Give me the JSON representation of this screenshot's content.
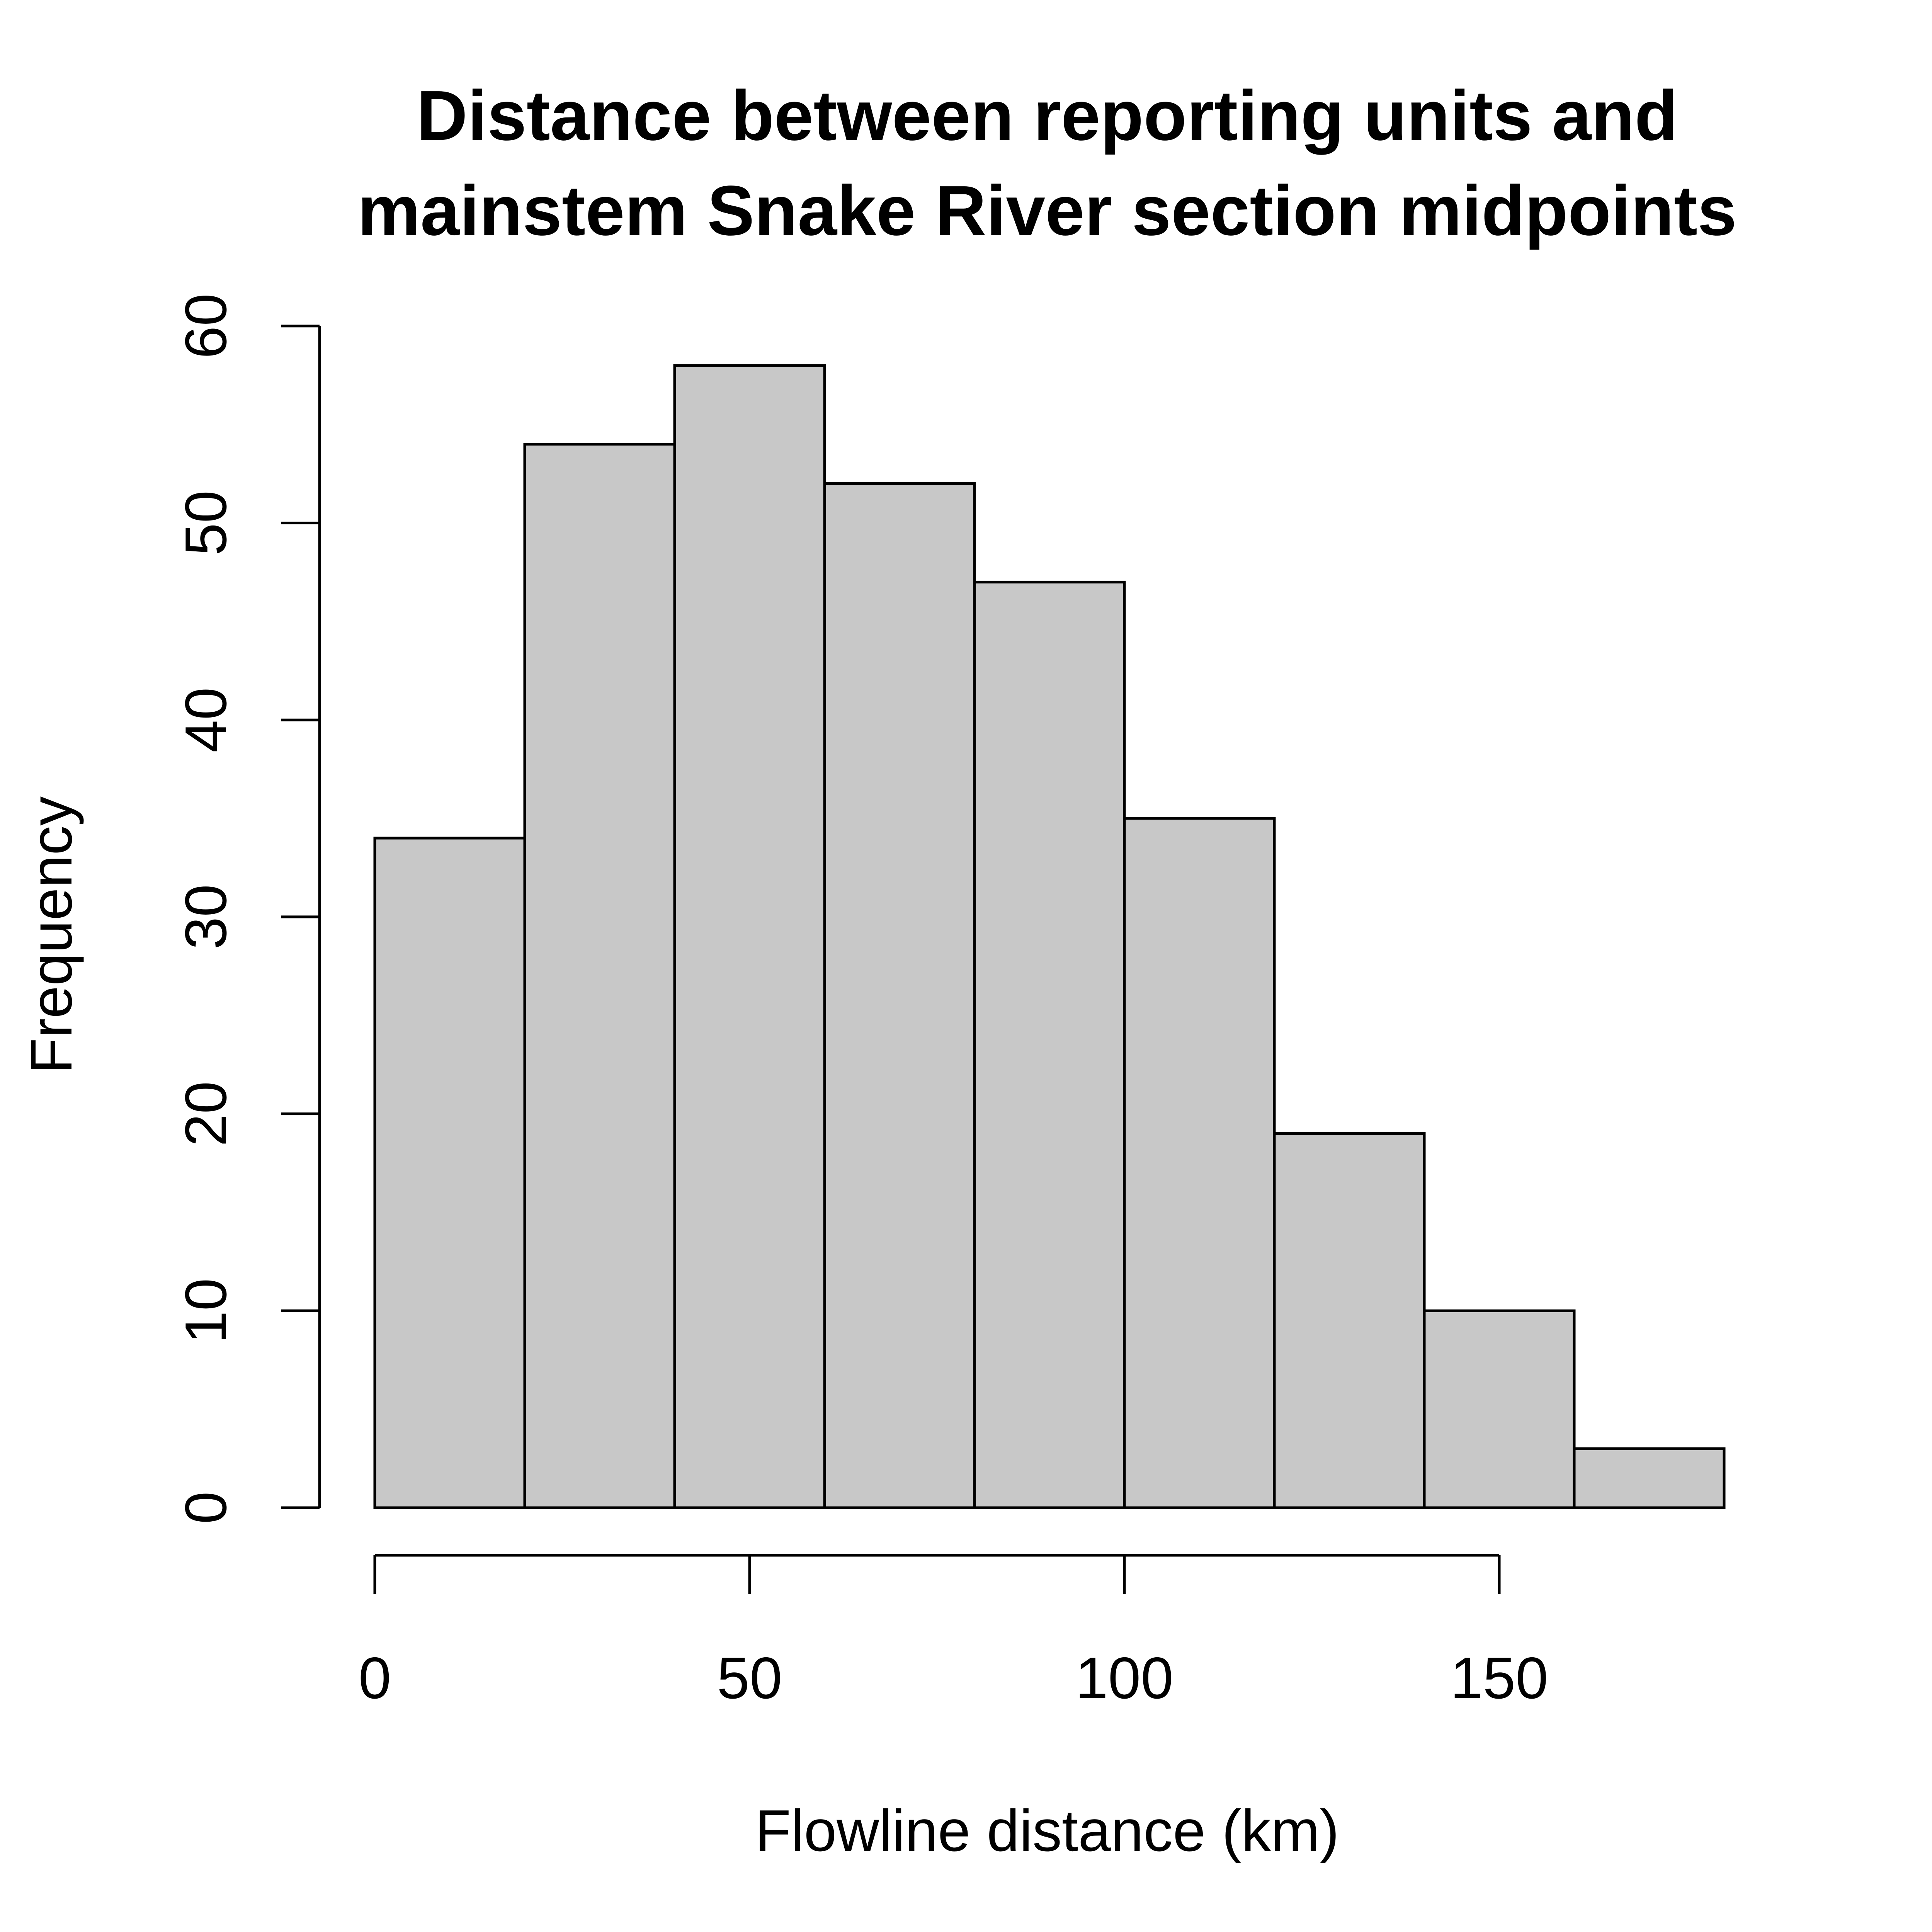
{
  "chart_data": {
    "type": "bar",
    "subtype": "histogram",
    "title_lines": [
      "Distance between reporting units and",
      "mainstem Snake River section midpoints"
    ],
    "xlabel": "Flowline distance (km)",
    "ylabel": "Frequency",
    "bins": [
      {
        "start": 0,
        "end": 20,
        "count": 34
      },
      {
        "start": 20,
        "end": 40,
        "count": 54
      },
      {
        "start": 40,
        "end": 60,
        "count": 58
      },
      {
        "start": 60,
        "end": 80,
        "count": 52
      },
      {
        "start": 80,
        "end": 100,
        "count": 47
      },
      {
        "start": 100,
        "end": 120,
        "count": 35
      },
      {
        "start": 120,
        "end": 140,
        "count": 19
      },
      {
        "start": 140,
        "end": 160,
        "count": 10
      },
      {
        "start": 160,
        "end": 180,
        "count": 3
      }
    ],
    "xlim": [
      0,
      180
    ],
    "ylim": [
      0,
      60
    ],
    "x_ticks": [
      0,
      50,
      100,
      150
    ],
    "y_ticks": [
      0,
      10,
      20,
      30,
      40,
      50,
      60
    ],
    "bar_color": "#c8c8c8",
    "grid": false,
    "legend": "none"
  }
}
